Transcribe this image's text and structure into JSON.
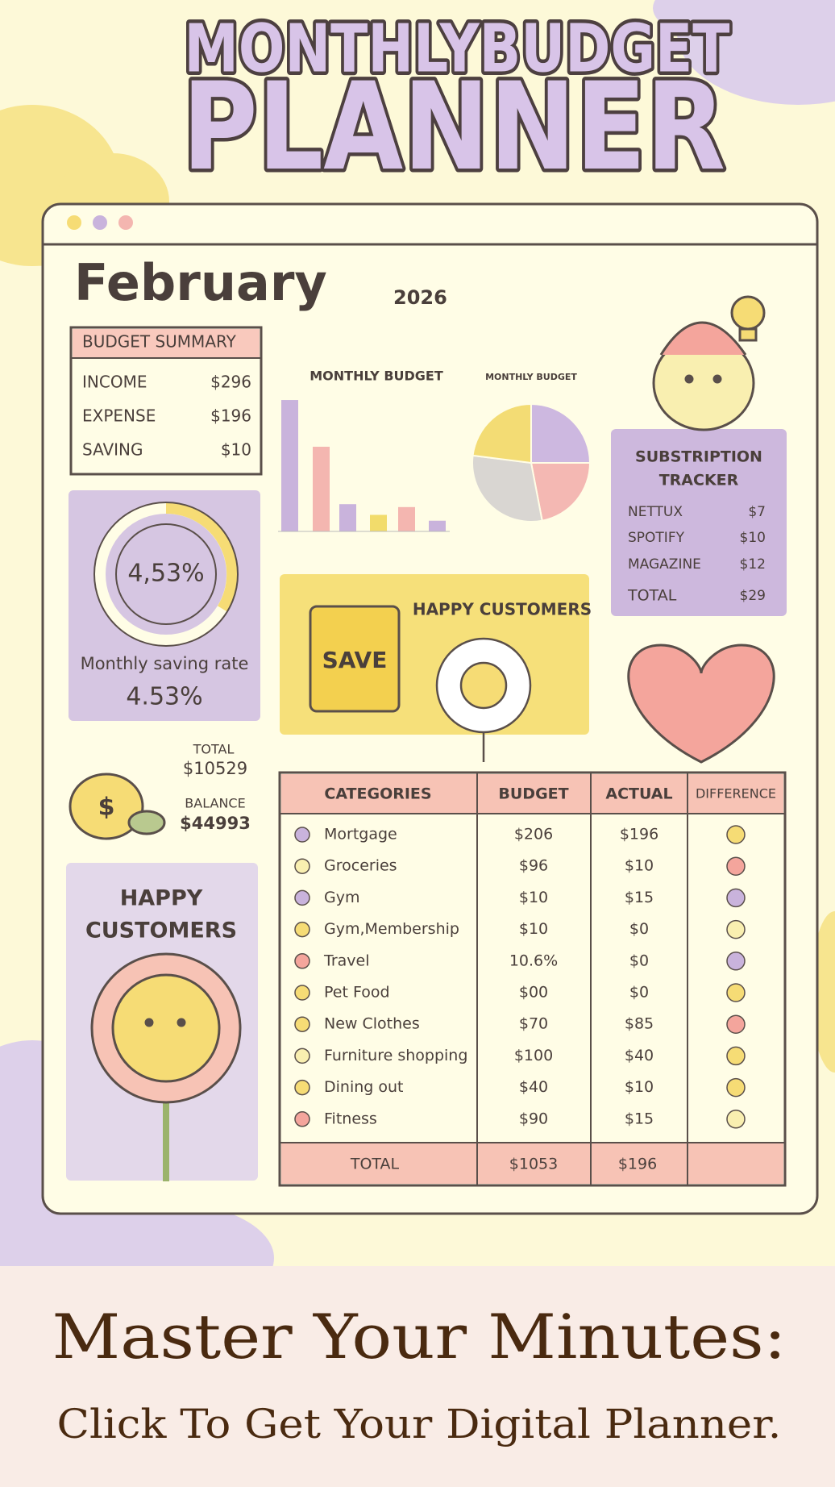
{
  "header": {
    "title_line1": "MONTHLYBUDGET",
    "title_line2": "PLANNER"
  },
  "planner": {
    "month": "February",
    "year": "2026"
  },
  "budget_summary": {
    "title": "BUDGET SUMMARY",
    "rows": [
      [
        "INCOME",
        "$296"
      ],
      [
        "EXPENSE",
        "$196"
      ],
      [
        "SAVING",
        "$10"
      ]
    ]
  },
  "bar_chart": {
    "title": "MONTHLY BUDGET",
    "values": [
      135,
      87,
      28,
      17,
      25,
      11
    ],
    "colors": [
      "#c9b3dc",
      "#f4b6b0",
      "#c9b3dc",
      "#f2dc6b",
      "#f4b6b0",
      "#c9b3dc"
    ],
    "ylim": [
      0,
      140
    ]
  },
  "pie_chart": {
    "title": "MONTHLY BUDGET",
    "values": [
      25,
      22,
      30,
      23
    ],
    "colors": [
      "#cdb8e0",
      "#f4b8b3",
      "#d9d6d2",
      "#f3dc74"
    ]
  },
  "subscription_tracker": {
    "title_line1": "SUBSTRIPTION",
    "title_line2": "TRACKER",
    "rows": [
      [
        "NETTUX",
        "$7"
      ],
      [
        "SPOTIFY",
        "$10"
      ],
      [
        "MAGAZINE",
        "$12"
      ],
      [
        "TOTAL",
        "$29"
      ]
    ]
  },
  "saving_rate": {
    "ring_label": "4,53%",
    "caption": "Monthly saving rate",
    "value_label": "4.53%"
  },
  "promo_card": {
    "title": "HAPPY CUSTOMERS",
    "badge": "SAVE"
  },
  "totals": {
    "bag_symbol": "$",
    "total_label": "TOTAL",
    "total_value": "$10529",
    "balance_label": "BALANCE",
    "balance_value": "$44993"
  },
  "side_card": {
    "title_line1": "HAPPY",
    "title_line2": "CUSTOMERS"
  },
  "table": {
    "headers": [
      "CATEGORIES",
      "BUDGET",
      "ACTUAL",
      "DIFFERENCE"
    ],
    "rows": [
      [
        "Mortgage",
        "$206",
        "$196"
      ],
      [
        "Groceries",
        "$96",
        "$10"
      ],
      [
        "Gym",
        "$10",
        "$15"
      ],
      [
        "Gym,Membership",
        "$10",
        "$0"
      ],
      [
        "Travel",
        "10.6%",
        "$0"
      ],
      [
        "Pet Food",
        "$00",
        "$0"
      ],
      [
        "New Clothes",
        "$70",
        "$85"
      ],
      [
        "Furniture shopping",
        "$100",
        "$40"
      ],
      [
        "Dining out",
        "$40",
        "$10"
      ],
      [
        "Fitness",
        "$90",
        "$15"
      ]
    ],
    "total": [
      "TOTAL",
      "$1053",
      "$196"
    ]
  },
  "footer": {
    "headline": "Master Your Minutes:",
    "subline": "Click To Get Your Digital Planner."
  }
}
